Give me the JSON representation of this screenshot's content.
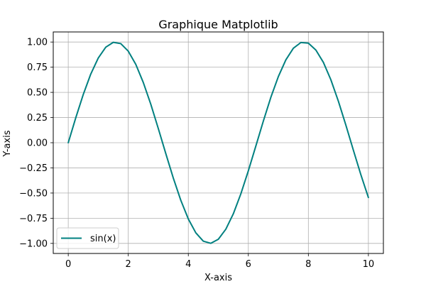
{
  "chart_data": {
    "type": "line",
    "title": "Graphique Matplotlib",
    "xlabel": "X-axis",
    "ylabel": "Y-axis",
    "xlim": [
      -0.5,
      10.5
    ],
    "ylim": [
      -1.1,
      1.1
    ],
    "grid": true,
    "legend_position": "lower-left",
    "x_ticks": [
      0,
      2,
      4,
      6,
      8,
      10
    ],
    "x_tick_labels": [
      "0",
      "2",
      "4",
      "6",
      "8",
      "10"
    ],
    "y_ticks": [
      -1.0,
      -0.75,
      -0.5,
      -0.25,
      0.0,
      0.25,
      0.5,
      0.75,
      1.0
    ],
    "y_tick_labels": [
      "−1.00",
      "−0.75",
      "−0.50",
      "−0.25",
      "0.00",
      "0.25",
      "0.50",
      "0.75",
      "1.00"
    ],
    "series": [
      {
        "name": "sin(x)",
        "color": "#008080",
        "x": [
          0,
          0.25,
          0.5,
          0.75,
          1.0,
          1.25,
          1.5,
          1.75,
          2.0,
          2.25,
          2.5,
          2.75,
          3.0,
          3.25,
          3.5,
          3.75,
          4.0,
          4.25,
          4.5,
          4.75,
          5.0,
          5.25,
          5.5,
          5.75,
          6.0,
          6.25,
          6.5,
          6.75,
          7.0,
          7.25,
          7.5,
          7.75,
          8.0,
          8.25,
          8.5,
          8.75,
          9.0,
          9.25,
          9.5,
          9.75,
          10.0
        ],
        "y": [
          0.0,
          0.247,
          0.479,
          0.682,
          0.841,
          0.949,
          0.997,
          0.984,
          0.909,
          0.778,
          0.598,
          0.382,
          0.141,
          -0.108,
          -0.351,
          -0.572,
          -0.757,
          -0.895,
          -0.978,
          -0.999,
          -0.959,
          -0.859,
          -0.706,
          -0.508,
          -0.279,
          -0.033,
          0.215,
          0.451,
          0.657,
          0.823,
          0.938,
          0.995,
          0.989,
          0.92,
          0.798,
          0.625,
          0.412,
          0.174,
          -0.075,
          -0.319,
          -0.544
        ]
      }
    ]
  }
}
